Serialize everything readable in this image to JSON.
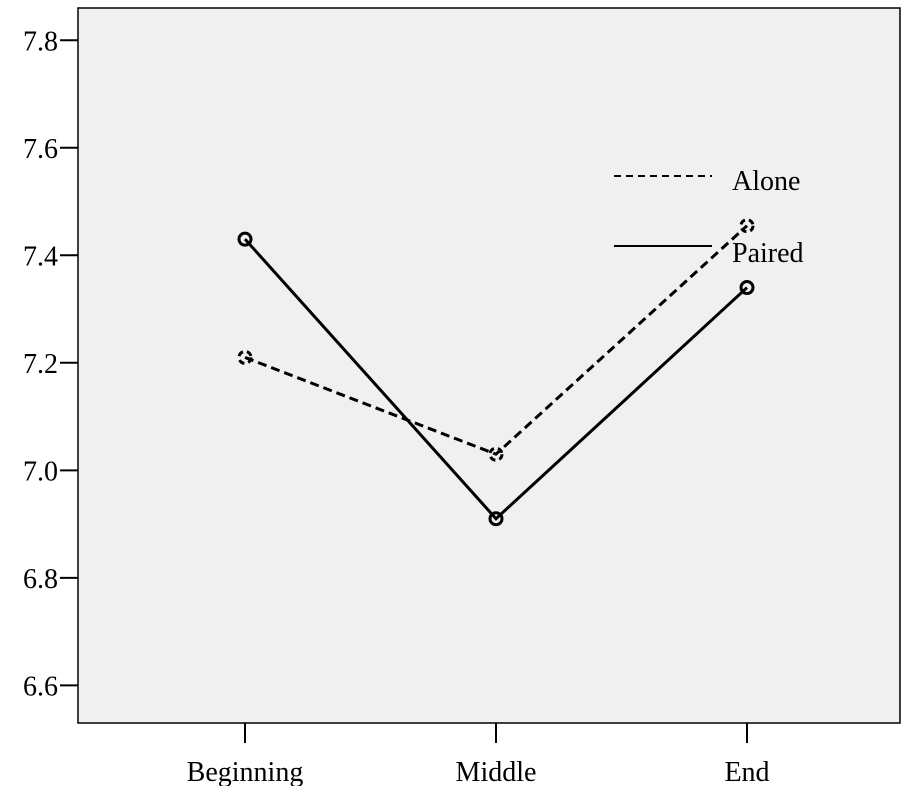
{
  "chart_data": {
    "type": "line",
    "categories": [
      "Beginning",
      "Middle",
      "End"
    ],
    "yticks": [
      "6.6",
      "6.8",
      "7.0",
      "7.2",
      "7.4",
      "7.6",
      "7.8"
    ],
    "ylim": [
      6.53,
      7.86
    ],
    "series": [
      {
        "name": "Alone",
        "values": [
          7.21,
          7.03,
          7.455
        ],
        "style": "dashed",
        "color": "#000000"
      },
      {
        "name": "Paired",
        "values": [
          7.43,
          6.91,
          7.34
        ],
        "style": "solid",
        "color": "#000000"
      }
    ],
    "legend_position": "top-right",
    "plot_background": "#f0f0f0",
    "grid": false
  }
}
